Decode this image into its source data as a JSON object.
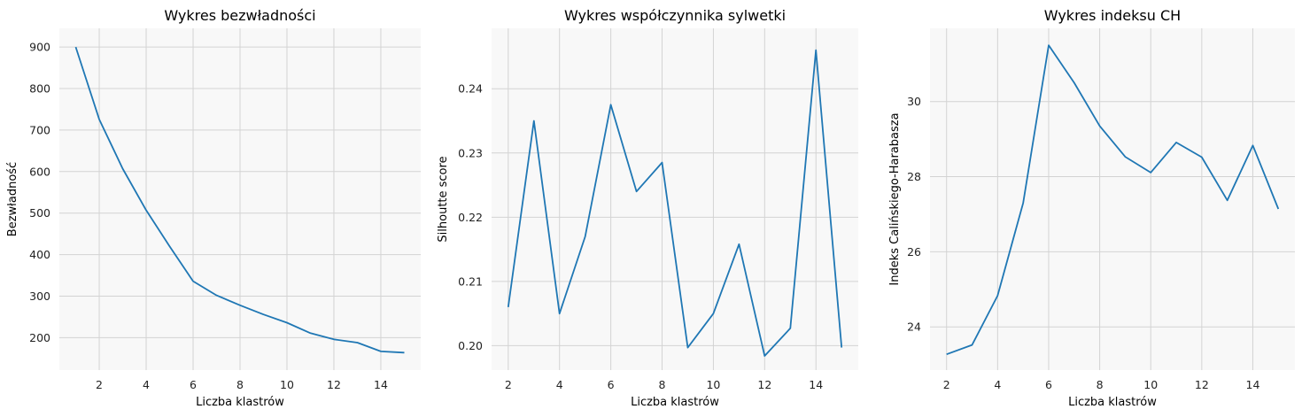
{
  "chart_data": [
    {
      "type": "line",
      "title": "Wykres bezwładności",
      "xlabel": "Liczba klastrów",
      "ylabel": "Bezwładność",
      "xlim": [
        0.3,
        15.7
      ],
      "ylim": [
        122,
        945
      ],
      "xticks": [
        2,
        4,
        6,
        8,
        10,
        12,
        14
      ],
      "yticks": [
        200,
        300,
        400,
        500,
        600,
        700,
        800,
        900
      ],
      "ytick_decimals": 0,
      "grid": true,
      "x": [
        1,
        2,
        3,
        4,
        5,
        6,
        7,
        8,
        9,
        10,
        11,
        12,
        13,
        14,
        15
      ],
      "y": [
        900,
        726,
        607,
        507,
        420,
        336,
        302,
        278,
        256,
        236,
        211,
        196,
        188,
        167,
        164
      ]
    },
    {
      "type": "line",
      "title": "Wykres współczynnika sylwetki",
      "xlabel": "Liczba klastrów",
      "ylabel": "Silhoutte score",
      "xlim": [
        1.35,
        15.65
      ],
      "ylim": [
        0.1962,
        0.2494
      ],
      "xticks": [
        2,
        4,
        6,
        8,
        10,
        12,
        14
      ],
      "yticks": [
        0.2,
        0.21,
        0.22,
        0.23,
        0.24
      ],
      "ytick_decimals": 2,
      "grid": true,
      "x": [
        2,
        3,
        4,
        5,
        6,
        7,
        8,
        9,
        10,
        11,
        12,
        13,
        14,
        15
      ],
      "y": [
        0.206,
        0.235,
        0.205,
        0.217,
        0.2375,
        0.224,
        0.2285,
        0.1997,
        0.205,
        0.2158,
        0.1984,
        0.2027,
        0.246,
        0.1997
      ]
    },
    {
      "type": "line",
      "title": "Wykres indeksu CH",
      "xlabel": "Liczba klastrów",
      "ylabel": "Indeks Calińskiego-Harabasza",
      "xlim": [
        1.35,
        15.65
      ],
      "ylim": [
        22.85,
        31.95
      ],
      "xticks": [
        2,
        4,
        6,
        8,
        10,
        12,
        14
      ],
      "yticks": [
        24,
        26,
        28,
        30
      ],
      "ytick_decimals": 0,
      "grid": true,
      "x": [
        2,
        3,
        4,
        5,
        6,
        7,
        8,
        9,
        10,
        11,
        12,
        13,
        14,
        15
      ],
      "y": [
        23.27,
        23.52,
        24.83,
        27.3,
        31.5,
        30.5,
        29.35,
        28.53,
        28.11,
        28.91,
        28.52,
        27.37,
        28.83,
        27.14
      ]
    }
  ]
}
